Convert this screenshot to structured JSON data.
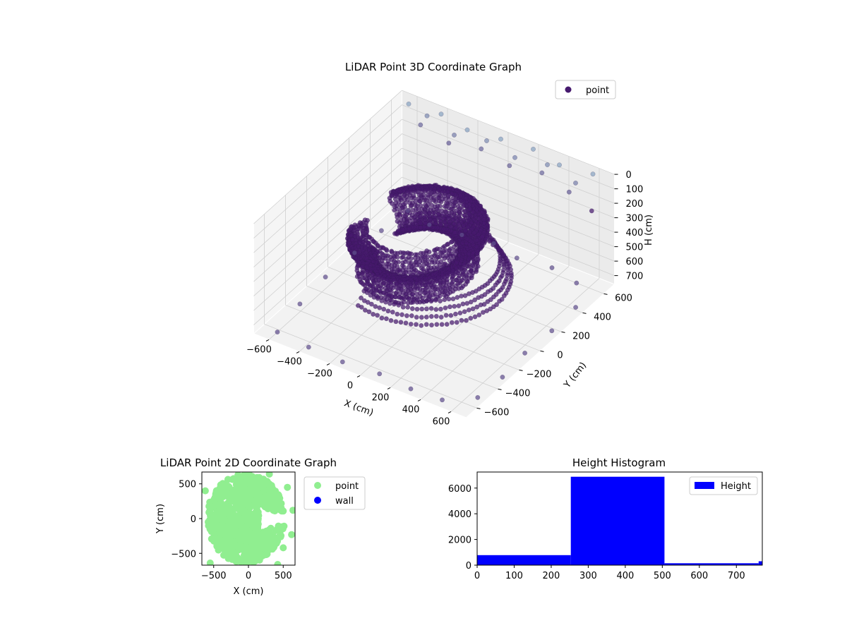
{
  "colors": {
    "point_dark": "#46196e",
    "point_light": "#8fb2c9",
    "scatter2d_point": "#90ee90",
    "scatter2d_wall": "#0000ff",
    "histogram_bar": "#0000ff",
    "pane": "#f2f2f2",
    "grid": "#d0d0d0"
  },
  "chart_data": [
    {
      "type": "scatter3d",
      "title": "LiDAR Point 3D Coordinate Graph",
      "xlabel": "X (cm)",
      "ylabel": "Y (cm)",
      "zlabel": "H (cm)",
      "xlim": [
        -700,
        700
      ],
      "ylim": [
        -700,
        700
      ],
      "zlim": [
        0,
        760
      ],
      "z_inverted": true,
      "xticks": [
        -600,
        -400,
        -200,
        0,
        200,
        400,
        600
      ],
      "yticks": [
        -600,
        -400,
        -200,
        0,
        200,
        400,
        600
      ],
      "zticks": [
        0,
        100,
        200,
        300,
        400,
        500,
        600,
        700
      ],
      "legend": {
        "entries": [
          "point"
        ],
        "placement": "top-right"
      },
      "grid": true,
      "series": [
        {
          "name": "point",
          "description_note": "",
          "points_floor": [
            [
              -620,
              640,
              760
            ],
            [
              -450,
              600,
              760
            ],
            [
              -250,
              620,
              760
            ],
            [
              -60,
              650,
              760
            ],
            [
              120,
              610,
              760
            ],
            [
              330,
              640,
              760
            ],
            [
              520,
              600,
              760
            ],
            [
              640,
              420,
              760
            ],
            [
              650,
              180,
              760
            ],
            [
              640,
              -60,
              760
            ],
            [
              660,
              -300,
              760
            ],
            [
              650,
              -520,
              760
            ],
            [
              500,
              -640,
              760
            ],
            [
              300,
              -650,
              760
            ],
            [
              80,
              -630,
              760
            ],
            [
              -150,
              -650,
              760
            ],
            [
              -380,
              -640,
              760
            ],
            [
              -600,
              -620,
              760
            ],
            [
              -640,
              -350,
              760
            ],
            [
              -660,
              -80,
              760
            ],
            [
              -650,
              180,
              760
            ],
            [
              -640,
              420,
              760
            ]
          ],
          "points_ceiling": [
            [
              -600,
              620,
              0
            ],
            [
              -400,
              640,
              0
            ],
            [
              -200,
              600,
              0
            ],
            [
              0,
              630,
              0
            ],
            [
              200,
              650,
              0
            ],
            [
              400,
              610,
              0
            ],
            [
              600,
              640,
              0
            ],
            [
              -500,
              650,
              60
            ],
            [
              -300,
              620,
              90
            ],
            [
              -100,
              640,
              60
            ],
            [
              100,
              620,
              80
            ],
            [
              300,
              640,
              60
            ],
            [
              500,
              620,
              90
            ],
            [
              -550,
              660,
              150
            ],
            [
              -350,
              640,
              180
            ],
            [
              -150,
              660,
              150
            ],
            [
              50,
              640,
              170
            ],
            [
              250,
              660,
              150
            ],
            [
              450,
              630,
              180
            ],
            [
              620,
              600,
              220
            ]
          ]
        }
      ]
    },
    {
      "type": "scatter",
      "title": "LiDAR Point 2D Coordinate Graph",
      "xlabel": "X (cm)",
      "ylabel": "Y (cm)",
      "xlim": [
        -670,
        670
      ],
      "ylim": [
        -670,
        670
      ],
      "xticks": [
        -500,
        0,
        500
      ],
      "yticks": [
        -500,
        0,
        500
      ],
      "legend": {
        "entries": [
          "point",
          "wall"
        ],
        "placement": "outside-right"
      },
      "series": [
        {
          "name": "point",
          "points": []
        },
        {
          "name": "wall",
          "points": []
        }
      ]
    },
    {
      "type": "bar",
      "title": "Height Histogram",
      "xlabel": "",
      "ylabel": "",
      "xlim": [
        0,
        770
      ],
      "ylim": [
        0,
        7250
      ],
      "xticks": [
        0,
        100,
        200,
        300,
        400,
        500,
        600,
        700
      ],
      "yticks": [
        0,
        2000,
        4000,
        6000
      ],
      "legend": {
        "entries": [
          "Height"
        ],
        "placement": "top-right"
      },
      "series": [
        {
          "name": "Height",
          "bins": [
            {
              "start": 0,
              "end": 253,
              "value": 780
            },
            {
              "start": 253,
              "end": 506,
              "value": 6880
            },
            {
              "start": 506,
              "end": 760,
              "value": 150
            },
            {
              "start": 760,
              "end": 770,
              "value": 300
            }
          ]
        }
      ]
    }
  ]
}
